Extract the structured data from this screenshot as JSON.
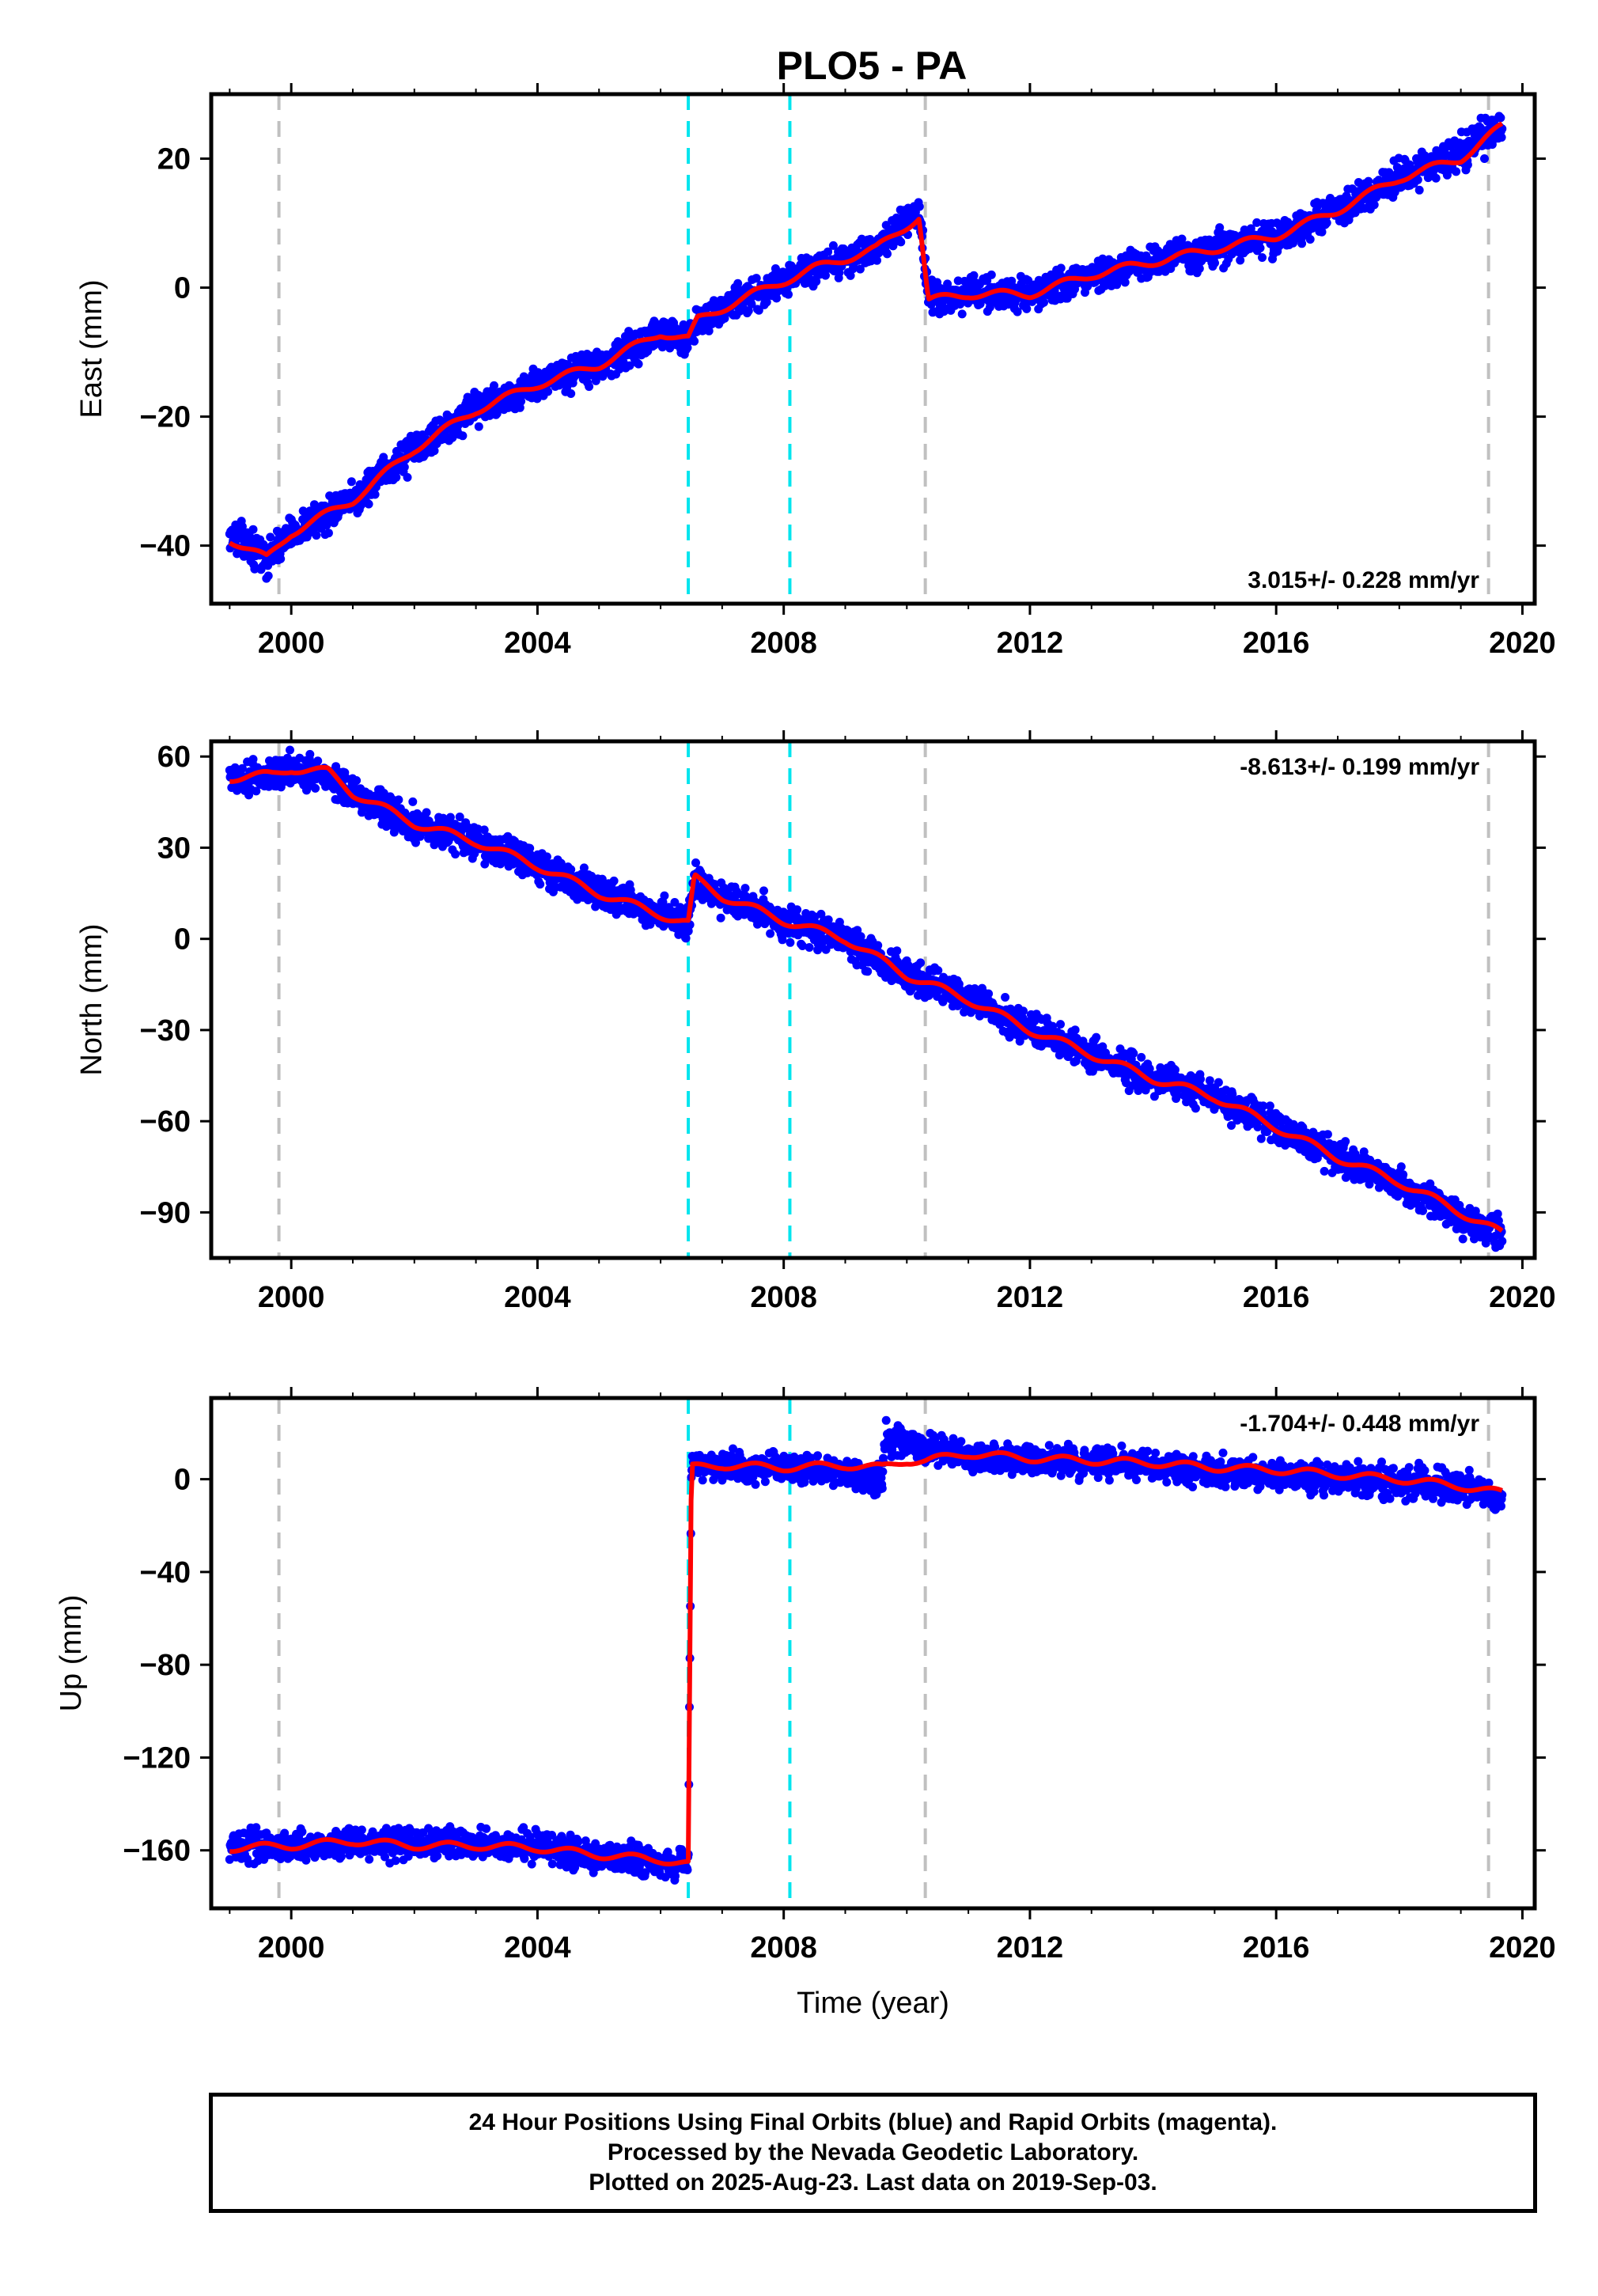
{
  "colors": {
    "observations": "#0000ff",
    "model": "#ff0000",
    "step_equipment": "#00e5ee",
    "step_other": "#c0c0c0",
    "frame": "#000000"
  },
  "chart_data": [
    {
      "type": "scatter",
      "title": "PLO5 - PA",
      "xlabel": "",
      "ylabel": "East (mm)",
      "xlim": [
        1998.7,
        2020.2
      ],
      "ylim": [
        -49,
        30
      ],
      "xticks": [
        2000,
        2004,
        2008,
        2012,
        2016,
        2020
      ],
      "yticks": [
        -40,
        -20,
        0,
        20
      ],
      "ytick_labels": [
        "−40",
        "−20",
        "0",
        "20"
      ],
      "rate_text": "3.015+/- 0.228 mm/yr",
      "rate_position": "bottom-right",
      "series": [
        {
          "name": "observations",
          "x": [
            1999.0,
            1999.6,
            2000.0,
            2001.0,
            2002.0,
            2003.0,
            2004.0,
            2005.0,
            2006.0,
            2006.45,
            2006.6,
            2007.5,
            2008.5,
            2009.5,
            2010.2,
            2010.35,
            2011.0,
            2012.0,
            2013.0,
            2014.0,
            2015.0,
            2016.0,
            2017.0,
            2018.0,
            2019.0,
            2019.67
          ],
          "y": [
            -38,
            -42,
            -38,
            -33,
            -25,
            -19,
            -15,
            -12,
            -7,
            -8,
            -5,
            -1,
            3,
            6,
            12,
            -2,
            -1,
            -1,
            2,
            4,
            6,
            8,
            12,
            17,
            21,
            25
          ]
        },
        {
          "name": "model",
          "x": [
            1999.0,
            1999.6,
            2000.0,
            2001.0,
            2002.0,
            2003.0,
            2004.0,
            2005.0,
            2006.0,
            2006.45,
            2006.6,
            2007.5,
            2008.5,
            2009.5,
            2010.2,
            2010.35,
            2011.0,
            2012.0,
            2013.0,
            2014.0,
            2015.0,
            2016.0,
            2017.0,
            2018.0,
            2019.0,
            2019.67
          ],
          "y": [
            -39,
            -42,
            -38,
            -33,
            -25,
            -19,
            -15,
            -12,
            -7,
            -8,
            -5,
            -1,
            3,
            6,
            11,
            -2,
            -1,
            -1,
            2,
            4,
            6,
            8,
            12,
            17,
            20,
            25
          ]
        }
      ],
      "steps": [
        {
          "x": 1999.8,
          "kind": "other"
        },
        {
          "x": 2006.45,
          "kind": "equipment"
        },
        {
          "x": 2008.1,
          "kind": "equipment"
        },
        {
          "x": 2010.3,
          "kind": "other"
        },
        {
          "x": 2019.45,
          "kind": "other"
        }
      ]
    },
    {
      "type": "scatter",
      "xlabel": "",
      "ylabel": "North (mm)",
      "xlim": [
        1998.7,
        2020.2
      ],
      "ylim": [
        -105,
        65
      ],
      "xticks": [
        2000,
        2004,
        2008,
        2012,
        2016,
        2020
      ],
      "yticks": [
        -90,
        -60,
        -30,
        0,
        30,
        60
      ],
      "ytick_labels": [
        "−90",
        "−60",
        "−30",
        "0",
        "30",
        "60"
      ],
      "rate_text": "-8.613+/- 0.199 mm/yr",
      "rate_position": "top-right",
      "series": [
        {
          "name": "observations",
          "x": [
            1999.0,
            1999.7,
            2000.0,
            2000.6,
            2001.0,
            2002.0,
            2003.0,
            2004.0,
            2005.0,
            2006.0,
            2006.45,
            2006.55,
            2007.0,
            2008.0,
            2009.0,
            2010.0,
            2011.0,
            2012.0,
            2013.0,
            2014.0,
            2015.0,
            2016.0,
            2017.0,
            2018.0,
            2019.0,
            2019.67
          ],
          "y": [
            53,
            54,
            55,
            54,
            48,
            38,
            32,
            24,
            15,
            8,
            5,
            19,
            14,
            6,
            0,
            -12,
            -20,
            -30,
            -38,
            -46,
            -52,
            -62,
            -72,
            -80,
            -92,
            -97
          ]
        },
        {
          "name": "model",
          "x": [
            1999.0,
            1999.7,
            2000.0,
            2000.6,
            2001.0,
            2002.0,
            2003.0,
            2004.0,
            2005.0,
            2006.0,
            2006.45,
            2006.55,
            2007.0,
            2008.0,
            2009.0,
            2010.0,
            2011.0,
            2012.0,
            2013.0,
            2014.0,
            2015.0,
            2016.0,
            2017.0,
            2018.0,
            2019.0,
            2019.67
          ],
          "y": [
            53,
            54,
            56,
            55,
            48,
            38,
            32,
            24,
            15,
            8,
            5,
            20,
            14,
            6,
            0,
            -12,
            -20,
            -30,
            -38,
            -46,
            -52,
            -62,
            -72,
            -80,
            -90,
            -97
          ]
        }
      ],
      "steps": [
        {
          "x": 1999.8,
          "kind": "other"
        },
        {
          "x": 2006.45,
          "kind": "equipment"
        },
        {
          "x": 2008.1,
          "kind": "equipment"
        },
        {
          "x": 2010.3,
          "kind": "other"
        },
        {
          "x": 2019.45,
          "kind": "other"
        }
      ]
    },
    {
      "type": "scatter",
      "xlabel": "Time (year)",
      "ylabel": "Up (mm)",
      "xlim": [
        1998.7,
        2020.2
      ],
      "ylim": [
        -185,
        35
      ],
      "xticks": [
        2000,
        2004,
        2008,
        2012,
        2016,
        2020
      ],
      "yticks": [
        -160,
        -120,
        -80,
        -40,
        0
      ],
      "ytick_labels": [
        "−160",
        "−120",
        "−80",
        "−40",
        "0"
      ],
      "rate_text": "-1.704+/- 0.448 mm/yr",
      "rate_position": "top-right",
      "series": [
        {
          "name": "observations",
          "x": [
            1999.0,
            2000.0,
            2001.0,
            2002.0,
            2003.0,
            2004.0,
            2005.0,
            2006.0,
            2006.45,
            2006.5,
            2007.0,
            2008.0,
            2009.0,
            2009.6,
            2009.65,
            2010.0,
            2011.0,
            2012.0,
            2013.0,
            2014.0,
            2015.0,
            2016.0,
            2017.0,
            2018.0,
            2019.0,
            2019.67
          ],
          "y": [
            -158,
            -158,
            -157,
            -157,
            -157,
            -158,
            -163,
            -165,
            -166,
            5,
            6,
            4,
            3,
            0,
            18,
            15,
            10,
            8,
            7,
            5,
            3,
            2,
            0,
            -1,
            -3,
            -8
          ]
        },
        {
          "name": "model",
          "x": [
            1999.0,
            2000.0,
            2001.0,
            2002.0,
            2003.0,
            2004.0,
            2005.0,
            2006.0,
            2006.45,
            2006.5,
            2007.0,
            2008.0,
            2009.0,
            2009.6,
            2010.0,
            2010.3,
            2011.0,
            2012.0,
            2013.0,
            2014.0,
            2015.0,
            2016.0,
            2017.0,
            2018.0,
            2019.0,
            2019.67
          ],
          "y": [
            -159,
            -158,
            -156,
            -158,
            -158,
            -159,
            -162,
            -164,
            -166,
            5,
            6,
            5,
            6,
            5,
            8,
            8,
            11,
            9,
            8,
            7,
            5,
            4,
            2,
            0,
            -3,
            -6
          ]
        }
      ],
      "steps": [
        {
          "x": 1999.8,
          "kind": "other"
        },
        {
          "x": 2006.45,
          "kind": "equipment"
        },
        {
          "x": 2008.1,
          "kind": "equipment"
        },
        {
          "x": 2010.3,
          "kind": "other"
        },
        {
          "x": 2019.45,
          "kind": "other"
        }
      ]
    }
  ],
  "footer": {
    "line1": "24 Hour Positions Using Final Orbits (blue) and Rapid Orbits (magenta).",
    "line2": "Processed by the Nevada Geodetic Laboratory.",
    "line3": "Plotted on 2025-Aug-23. Last data on 2019-Sep-03."
  }
}
